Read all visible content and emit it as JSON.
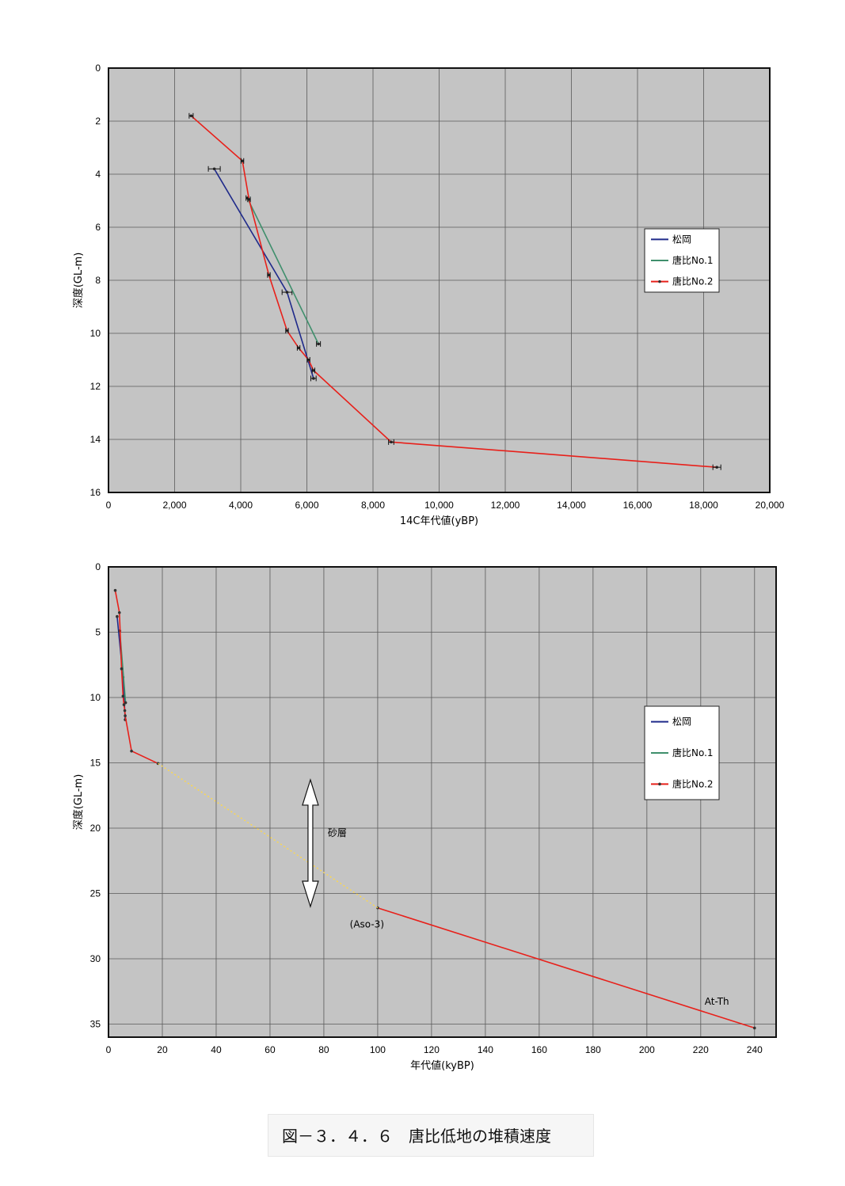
{
  "chart_data": [
    {
      "type": "line",
      "xlabel": "14C年代値(yBP)",
      "ylabel": "深度(GL-m)",
      "xlim": [
        0,
        20000
      ],
      "ylim": [
        0,
        16
      ],
      "y_inverted": true,
      "grid": true,
      "legend_position": "right",
      "x_ticks": [
        "0",
        "2,000",
        "4,000",
        "6,000",
        "8,000",
        "10,000",
        "12,000",
        "14,000",
        "16,000",
        "18,000",
        "20,000"
      ],
      "y_ticks": [
        "0",
        "2",
        "4",
        "6",
        "8",
        "10",
        "12",
        "14",
        "16"
      ],
      "series": [
        {
          "name": "松岡",
          "color": "#1f2a8a",
          "points": [
            [
              3200,
              3.8
            ],
            [
              5400,
              8.45
            ],
            [
              6200,
              11.7
            ]
          ],
          "error_x": [
            180,
            150,
            80
          ]
        },
        {
          "name": "唐比No.1",
          "color": "#3f8f6c",
          "points": [
            [
              4200,
              4.9
            ],
            [
              6350,
              10.4
            ]
          ],
          "error_x": [
            40,
            60
          ]
        },
        {
          "name": "唐比No.2",
          "color": "#e8201a",
          "points": [
            [
              2500,
              1.8
            ],
            [
              4050,
              3.5
            ],
            [
              4250,
              4.95
            ],
            [
              4850,
              7.8
            ],
            [
              5400,
              9.9
            ],
            [
              5750,
              10.55
            ],
            [
              6050,
              11.0
            ],
            [
              6200,
              11.4
            ],
            [
              8550,
              14.1
            ],
            [
              18400,
              15.05
            ]
          ],
          "error_x": [
            60,
            40,
            40,
            40,
            40,
            40,
            40,
            40,
            80,
            120
          ]
        }
      ]
    },
    {
      "type": "line",
      "xlabel": "年代値(kyBP)",
      "ylabel": "深度(GL-m)",
      "xlim": [
        0,
        248
      ],
      "ylim": [
        0,
        36
      ],
      "y_inverted": true,
      "grid": true,
      "legend_position": "right",
      "x_ticks": [
        "0",
        "20",
        "40",
        "60",
        "80",
        "100",
        "120",
        "140",
        "160",
        "180",
        "200",
        "220",
        "240"
      ],
      "y_ticks": [
        "0",
        "5",
        "10",
        "15",
        "20",
        "25",
        "30",
        "35"
      ],
      "series": [
        {
          "name": "松岡",
          "color": "#1f2a8a",
          "points": [
            [
              3.2,
              3.8
            ],
            [
              5.4,
              8.45
            ],
            [
              6.2,
              11.7
            ]
          ]
        },
        {
          "name": "唐比No.1",
          "color": "#3f8f6c",
          "points": [
            [
              4.2,
              4.9
            ],
            [
              6.35,
              10.4
            ]
          ]
        },
        {
          "name": "唐比No.2",
          "color": "#e8201a",
          "points": [
            [
              2.5,
              1.8
            ],
            [
              4.05,
              3.5
            ],
            [
              4.85,
              7.8
            ],
            [
              5.4,
              9.9
            ],
            [
              5.75,
              10.55
            ],
            [
              6.05,
              11.0
            ],
            [
              6.2,
              11.4
            ],
            [
              8.55,
              14.1
            ],
            [
              18.4,
              15.05
            ]
          ]
        },
        {
          "name": "",
          "color": "#e8201a",
          "points": [
            [
              100,
              26.1
            ],
            [
              240,
              35.3
            ]
          ]
        },
        {
          "name": "",
          "color": "#ffd84a",
          "dashed": true,
          "points": [
            [
              18.4,
              15.05
            ],
            [
              100,
              26.1
            ]
          ]
        }
      ],
      "annotations": [
        {
          "text": "砂層",
          "x": 85,
          "y": 20.6
        },
        {
          "text": "(Aso-3)",
          "x": 96,
          "y": 27.6
        },
        {
          "text": "At-Th",
          "x": 226,
          "y": 33.5
        }
      ],
      "arrow": {
        "x": 75,
        "y_from": 16.3,
        "y_to": 26
      }
    }
  ],
  "caption": "図－３．４．６　唐比低地の堆積速度"
}
